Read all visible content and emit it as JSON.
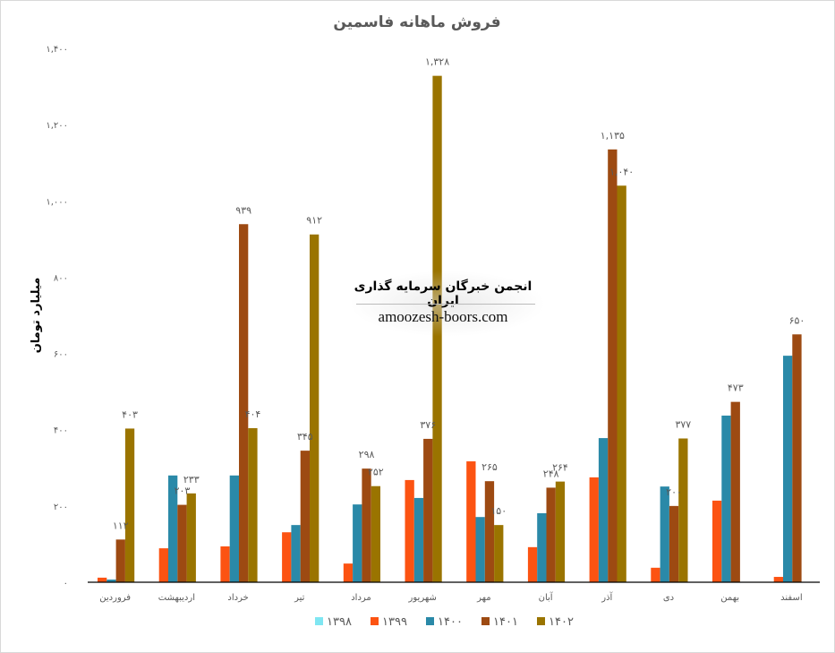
{
  "chart_data": {
    "type": "bar",
    "title": "فروش ماهانه فاسمین",
    "ylabel": "میلیارد تومان",
    "xlabel": "",
    "ylim": [
      0,
      1400
    ],
    "yticks": [
      0,
      200,
      400,
      600,
      800,
      1000,
      1200,
      1400
    ],
    "ytick_labels": [
      "۰",
      "۲۰۰",
      "۴۰۰",
      "۶۰۰",
      "۸۰۰",
      "۱,۰۰۰",
      "۱,۲۰۰",
      "۱,۴۰۰"
    ],
    "grid": false,
    "legend_position": "bottom",
    "categories": [
      "فروردین",
      "اردیبهشت",
      "خرداد",
      "تیر",
      "مرداد",
      "شهریور",
      "مهر",
      "آبان",
      "آذر",
      "دی",
      "بهمن",
      "اسفند"
    ],
    "series": [
      {
        "name": "۱۳۹۸",
        "color": "#7fe6f2",
        "values": [
          0,
          0,
          0,
          0,
          0,
          0,
          0,
          0,
          0,
          0,
          0,
          0
        ],
        "labels": [
          "",
          "",
          "",
          "",
          "",
          "",
          "",
          "",
          "",
          "",
          "",
          ""
        ]
      },
      {
        "name": "۱۳۹۹",
        "color": "#fc5312",
        "values": [
          12,
          89,
          94,
          131,
          49,
          268,
          317,
          92,
          275,
          38,
          214,
          14
        ],
        "labels": [
          "",
          "",
          "",
          "",
          "",
          "",
          "",
          "",
          "",
          "",
          "",
          ""
        ]
      },
      {
        "name": "۱۴۰۰",
        "color": "#2a89a8",
        "values": [
          7,
          280,
          280,
          150,
          204,
          221,
          171,
          181,
          378,
          251,
          437,
          594
        ],
        "labels": [
          "",
          "",
          "",
          "",
          "",
          "",
          "",
          "",
          "",
          "",
          "",
          ""
        ]
      },
      {
        "name": "۱۴۰۱",
        "color": "#9d4a12",
        "values": [
          112,
          203,
          939,
          345,
          298,
          376,
          265,
          248,
          1135,
          200,
          473,
          650
        ],
        "labels": [
          "۱۱۲",
          "۲۰۳",
          "۹۳۹",
          "۳۴۵",
          "۲۹۸",
          "۳۷۶",
          "۲۶۵",
          "۲۴۸",
          "۱,۱۳۵",
          "۲۰۰",
          "۴۷۳",
          "۶۵۰"
        ]
      },
      {
        "name": "۱۴۰۲",
        "color": "#9a7400",
        "values": [
          403,
          233,
          404,
          912,
          252,
          1328,
          150,
          264,
          1040,
          377,
          0,
          0
        ],
        "labels": [
          "۴۰۳",
          "۲۳۳",
          "۴۰۴",
          "۹۱۲",
          "۲۵۲",
          "۱,۳۲۸",
          "۱۵۰",
          "۲۶۴",
          "۱,۰۴۰",
          "۳۷۷",
          "",
          ""
        ]
      }
    ]
  },
  "watermark": {
    "line1": "انجمن خبرگان سرمایه گذاری ایران",
    "line2": "amoozesh-boors.com"
  }
}
